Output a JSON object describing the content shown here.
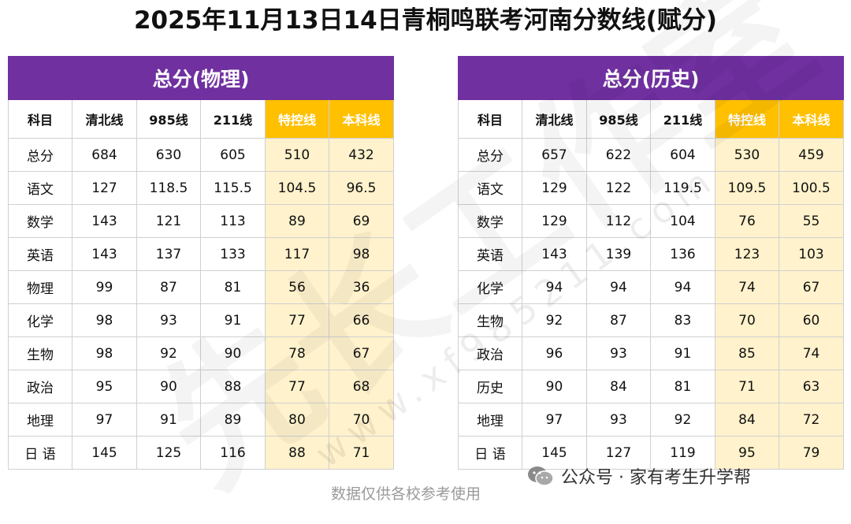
{
  "title": "2025年11月13日14日青桐鸣联考河南分数线(赋分)",
  "physics": {
    "caption": "总分(物理)",
    "headers": [
      "科目",
      "清北线",
      "985线",
      "211线",
      "特控线",
      "本科线"
    ],
    "rows": [
      [
        "总分",
        "684",
        "630",
        "605",
        "510",
        "432"
      ],
      [
        "语文",
        "127",
        "118.5",
        "115.5",
        "104.5",
        "96.5"
      ],
      [
        "数学",
        "143",
        "121",
        "113",
        "89",
        "69"
      ],
      [
        "英语",
        "143",
        "137",
        "133",
        "117",
        "98"
      ],
      [
        "物理",
        "99",
        "87",
        "81",
        "56",
        "36"
      ],
      [
        "化学",
        "98",
        "93",
        "91",
        "77",
        "66"
      ],
      [
        "生物",
        "98",
        "92",
        "90",
        "78",
        "67"
      ],
      [
        "政治",
        "95",
        "90",
        "88",
        "77",
        "68"
      ],
      [
        "地理",
        "97",
        "91",
        "89",
        "80",
        "70"
      ],
      [
        "日 语",
        "145",
        "125",
        "116",
        "88",
        "71"
      ]
    ]
  },
  "history": {
    "caption": "总分(历史)",
    "headers": [
      "科目",
      "清北线",
      "985线",
      "211线",
      "特控线",
      "本科线"
    ],
    "rows": [
      [
        "总分",
        "657",
        "622",
        "604",
        "530",
        "459"
      ],
      [
        "语文",
        "129",
        "122",
        "119.5",
        "109.5",
        "100.5"
      ],
      [
        "数学",
        "129",
        "112",
        "104",
        "76",
        "55"
      ],
      [
        "英语",
        "143",
        "139",
        "136",
        "123",
        "103"
      ],
      [
        "化学",
        "94",
        "94",
        "94",
        "74",
        "67"
      ],
      [
        "生物",
        "92",
        "87",
        "83",
        "70",
        "60"
      ],
      [
        "政治",
        "96",
        "93",
        "91",
        "85",
        "74"
      ],
      [
        "历史",
        "90",
        "84",
        "81",
        "71",
        "63"
      ],
      [
        "地理",
        "97",
        "93",
        "92",
        "84",
        "72"
      ],
      [
        "日 语",
        "145",
        "127",
        "119",
        "95",
        "79"
      ]
    ]
  },
  "watermark": {
    "big": "先长工作室",
    "url": "www.xf985211.com"
  },
  "footer": {
    "note": "数据仅供各校参考使用",
    "wechat": "公众号 · 家有考生升学帮",
    "wechat_icon": "wechat-icon"
  },
  "colors": {
    "caption_bg": "#7030a0",
    "highlight_header_bg": "#ffc000",
    "highlight_cell_bg": "#fff2cc"
  }
}
